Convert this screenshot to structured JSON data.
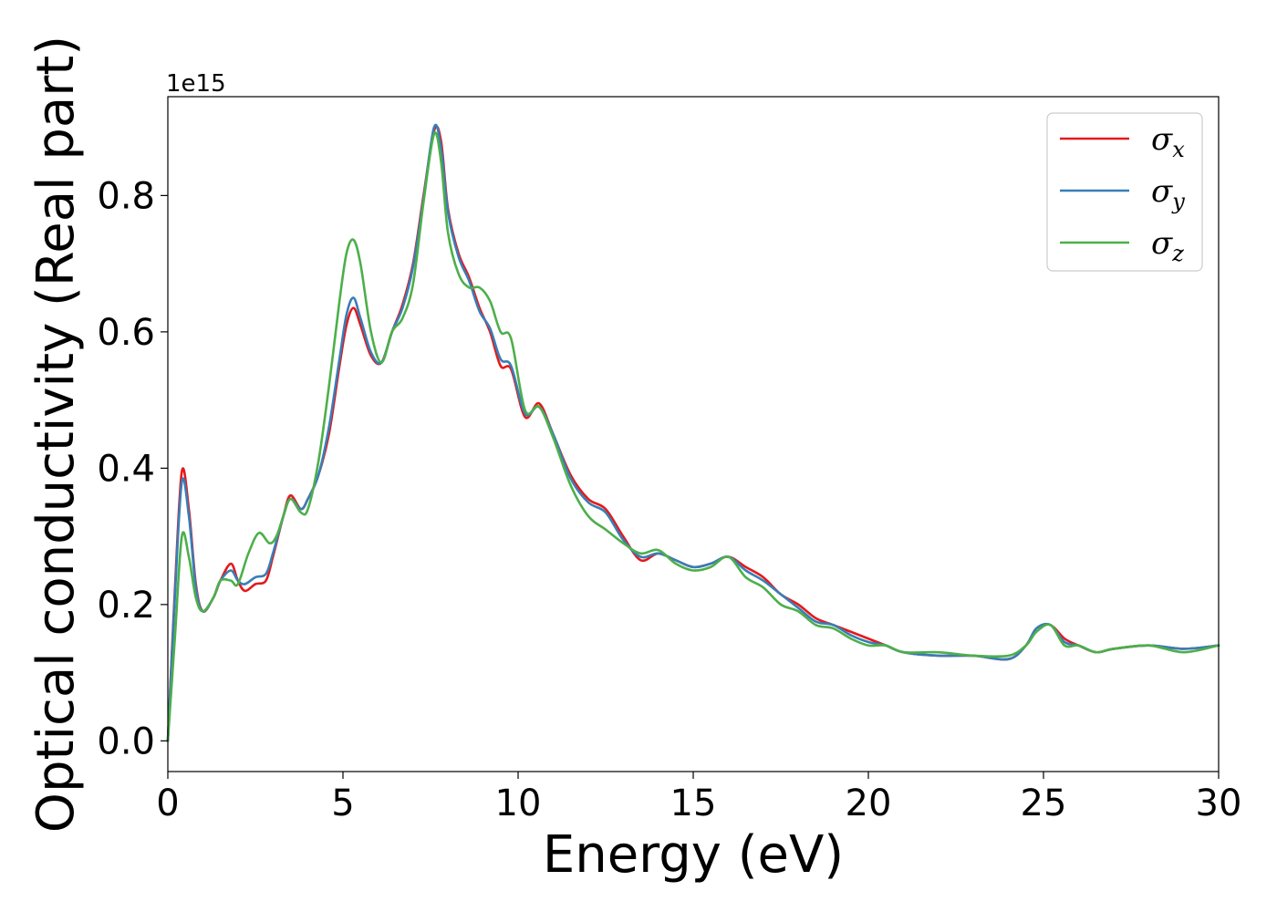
{
  "chart_data": {
    "type": "line",
    "title": "",
    "xlabel": "Energy (eV)",
    "ylabel": "Optical conductivity (Real part)",
    "y_offset_text": "1e15",
    "xlim": [
      0,
      30
    ],
    "ylim": [
      -0.045,
      0.945
    ],
    "xticks": [
      0,
      5,
      10,
      15,
      20,
      25,
      30
    ],
    "yticks": [
      0.0,
      0.2,
      0.4,
      0.6,
      0.8
    ],
    "xtick_labels": [
      "0",
      "5",
      "10",
      "15",
      "20",
      "25",
      "30"
    ],
    "ytick_labels": [
      "0.0",
      "0.2",
      "0.4",
      "0.6",
      "0.8"
    ],
    "grid": false,
    "legend_position": "top-right",
    "series": [
      {
        "name": "σ",
        "subscript": "x",
        "color": "#e41a1c",
        "points": [
          [
            0,
            0
          ],
          [
            0.2,
            0.22
          ],
          [
            0.4,
            0.395
          ],
          [
            0.6,
            0.34
          ],
          [
            0.8,
            0.23
          ],
          [
            1.0,
            0.19
          ],
          [
            1.3,
            0.21
          ],
          [
            1.5,
            0.235
          ],
          [
            1.8,
            0.26
          ],
          [
            2.0,
            0.235
          ],
          [
            2.2,
            0.22
          ],
          [
            2.5,
            0.23
          ],
          [
            2.8,
            0.235
          ],
          [
            3.0,
            0.27
          ],
          [
            3.3,
            0.33
          ],
          [
            3.5,
            0.36
          ],
          [
            3.8,
            0.34
          ],
          [
            4.0,
            0.355
          ],
          [
            4.3,
            0.39
          ],
          [
            4.6,
            0.45
          ],
          [
            4.9,
            0.55
          ],
          [
            5.1,
            0.61
          ],
          [
            5.3,
            0.635
          ],
          [
            5.5,
            0.61
          ],
          [
            5.8,
            0.565
          ],
          [
            6.1,
            0.555
          ],
          [
            6.4,
            0.6
          ],
          [
            6.7,
            0.64
          ],
          [
            7.0,
            0.7
          ],
          [
            7.3,
            0.8
          ],
          [
            7.6,
            0.895
          ],
          [
            7.8,
            0.88
          ],
          [
            8.0,
            0.78
          ],
          [
            8.3,
            0.715
          ],
          [
            8.6,
            0.68
          ],
          [
            8.9,
            0.635
          ],
          [
            9.2,
            0.6
          ],
          [
            9.5,
            0.55
          ],
          [
            9.8,
            0.545
          ],
          [
            10.2,
            0.475
          ],
          [
            10.6,
            0.495
          ],
          [
            11.0,
            0.45
          ],
          [
            11.5,
            0.39
          ],
          [
            12.0,
            0.355
          ],
          [
            12.5,
            0.34
          ],
          [
            13.0,
            0.3
          ],
          [
            13.5,
            0.265
          ],
          [
            14.0,
            0.275
          ],
          [
            14.5,
            0.265
          ],
          [
            15.0,
            0.255
          ],
          [
            15.5,
            0.26
          ],
          [
            16.0,
            0.27
          ],
          [
            16.5,
            0.255
          ],
          [
            17.0,
            0.24
          ],
          [
            17.5,
            0.215
          ],
          [
            18.0,
            0.2
          ],
          [
            18.5,
            0.18
          ],
          [
            19.0,
            0.17
          ],
          [
            19.5,
            0.16
          ],
          [
            20.0,
            0.15
          ],
          [
            20.5,
            0.14
          ],
          [
            21.0,
            0.13
          ],
          [
            22.0,
            0.125
          ],
          [
            23.0,
            0.125
          ],
          [
            24.0,
            0.12
          ],
          [
            24.5,
            0.14
          ],
          [
            24.8,
            0.165
          ],
          [
            25.2,
            0.17
          ],
          [
            25.6,
            0.15
          ],
          [
            26.0,
            0.14
          ],
          [
            26.5,
            0.13
          ],
          [
            27.0,
            0.135
          ],
          [
            28.0,
            0.14
          ],
          [
            29.0,
            0.135
          ],
          [
            30.0,
            0.14
          ]
        ]
      },
      {
        "name": "σ",
        "subscript": "y",
        "color": "#377eb8",
        "points": [
          [
            0,
            0
          ],
          [
            0.2,
            0.21
          ],
          [
            0.4,
            0.38
          ],
          [
            0.6,
            0.33
          ],
          [
            0.8,
            0.225
          ],
          [
            1.0,
            0.19
          ],
          [
            1.3,
            0.21
          ],
          [
            1.5,
            0.235
          ],
          [
            1.8,
            0.25
          ],
          [
            2.0,
            0.235
          ],
          [
            2.2,
            0.23
          ],
          [
            2.5,
            0.24
          ],
          [
            2.8,
            0.245
          ],
          [
            3.0,
            0.275
          ],
          [
            3.3,
            0.33
          ],
          [
            3.5,
            0.355
          ],
          [
            3.8,
            0.34
          ],
          [
            4.0,
            0.355
          ],
          [
            4.3,
            0.39
          ],
          [
            4.6,
            0.46
          ],
          [
            4.9,
            0.56
          ],
          [
            5.1,
            0.625
          ],
          [
            5.3,
            0.65
          ],
          [
            5.5,
            0.62
          ],
          [
            5.8,
            0.57
          ],
          [
            6.1,
            0.555
          ],
          [
            6.4,
            0.6
          ],
          [
            6.7,
            0.635
          ],
          [
            7.0,
            0.695
          ],
          [
            7.3,
            0.795
          ],
          [
            7.6,
            0.9
          ],
          [
            7.8,
            0.87
          ],
          [
            8.0,
            0.775
          ],
          [
            8.3,
            0.71
          ],
          [
            8.6,
            0.675
          ],
          [
            8.9,
            0.63
          ],
          [
            9.2,
            0.605
          ],
          [
            9.5,
            0.56
          ],
          [
            9.8,
            0.55
          ],
          [
            10.2,
            0.48
          ],
          [
            10.6,
            0.49
          ],
          [
            11.0,
            0.45
          ],
          [
            11.5,
            0.385
          ],
          [
            12.0,
            0.35
          ],
          [
            12.5,
            0.335
          ],
          [
            13.0,
            0.295
          ],
          [
            13.5,
            0.27
          ],
          [
            14.0,
            0.275
          ],
          [
            14.5,
            0.265
          ],
          [
            15.0,
            0.255
          ],
          [
            15.5,
            0.26
          ],
          [
            16.0,
            0.27
          ],
          [
            16.5,
            0.25
          ],
          [
            17.0,
            0.235
          ],
          [
            17.5,
            0.215
          ],
          [
            18.0,
            0.195
          ],
          [
            18.5,
            0.175
          ],
          [
            19.0,
            0.17
          ],
          [
            19.5,
            0.155
          ],
          [
            20.0,
            0.145
          ],
          [
            20.5,
            0.14
          ],
          [
            21.0,
            0.13
          ],
          [
            22.0,
            0.125
          ],
          [
            23.0,
            0.125
          ],
          [
            24.0,
            0.12
          ],
          [
            24.5,
            0.14
          ],
          [
            24.8,
            0.165
          ],
          [
            25.2,
            0.17
          ],
          [
            25.6,
            0.145
          ],
          [
            26.0,
            0.14
          ],
          [
            26.5,
            0.13
          ],
          [
            27.0,
            0.135
          ],
          [
            28.0,
            0.14
          ],
          [
            29.0,
            0.135
          ],
          [
            30.0,
            0.14
          ]
        ]
      },
      {
        "name": "σ",
        "subscript": "z",
        "color": "#4daf4a",
        "points": [
          [
            0,
            0
          ],
          [
            0.2,
            0.15
          ],
          [
            0.4,
            0.3
          ],
          [
            0.6,
            0.27
          ],
          [
            0.8,
            0.21
          ],
          [
            1.0,
            0.19
          ],
          [
            1.3,
            0.21
          ],
          [
            1.5,
            0.235
          ],
          [
            1.8,
            0.235
          ],
          [
            2.0,
            0.23
          ],
          [
            2.3,
            0.275
          ],
          [
            2.6,
            0.305
          ],
          [
            2.9,
            0.29
          ],
          [
            3.1,
            0.3
          ],
          [
            3.3,
            0.33
          ],
          [
            3.5,
            0.355
          ],
          [
            3.8,
            0.335
          ],
          [
            4.0,
            0.34
          ],
          [
            4.3,
            0.41
          ],
          [
            4.6,
            0.52
          ],
          [
            4.9,
            0.645
          ],
          [
            5.1,
            0.715
          ],
          [
            5.3,
            0.735
          ],
          [
            5.5,
            0.7
          ],
          [
            5.8,
            0.6
          ],
          [
            6.1,
            0.555
          ],
          [
            6.4,
            0.6
          ],
          [
            6.7,
            0.62
          ],
          [
            7.0,
            0.67
          ],
          [
            7.3,
            0.79
          ],
          [
            7.6,
            0.89
          ],
          [
            7.8,
            0.85
          ],
          [
            8.0,
            0.745
          ],
          [
            8.3,
            0.685
          ],
          [
            8.6,
            0.665
          ],
          [
            8.9,
            0.665
          ],
          [
            9.2,
            0.645
          ],
          [
            9.5,
            0.6
          ],
          [
            9.8,
            0.59
          ],
          [
            10.2,
            0.485
          ],
          [
            10.6,
            0.49
          ],
          [
            11.0,
            0.445
          ],
          [
            11.5,
            0.375
          ],
          [
            12.0,
            0.33
          ],
          [
            12.5,
            0.31
          ],
          [
            13.0,
            0.29
          ],
          [
            13.5,
            0.275
          ],
          [
            14.0,
            0.28
          ],
          [
            14.5,
            0.26
          ],
          [
            15.0,
            0.25
          ],
          [
            15.5,
            0.255
          ],
          [
            16.0,
            0.27
          ],
          [
            16.5,
            0.24
          ],
          [
            17.0,
            0.225
          ],
          [
            17.5,
            0.2
          ],
          [
            18.0,
            0.19
          ],
          [
            18.5,
            0.17
          ],
          [
            19.0,
            0.165
          ],
          [
            19.5,
            0.15
          ],
          [
            20.0,
            0.14
          ],
          [
            20.5,
            0.14
          ],
          [
            21.0,
            0.13
          ],
          [
            22.0,
            0.13
          ],
          [
            23.0,
            0.125
          ],
          [
            24.0,
            0.125
          ],
          [
            24.5,
            0.14
          ],
          [
            24.8,
            0.16
          ],
          [
            25.2,
            0.17
          ],
          [
            25.6,
            0.14
          ],
          [
            26.0,
            0.14
          ],
          [
            26.5,
            0.13
          ],
          [
            27.0,
            0.135
          ],
          [
            28.0,
            0.14
          ],
          [
            29.0,
            0.13
          ],
          [
            30.0,
            0.14
          ]
        ]
      }
    ]
  }
}
